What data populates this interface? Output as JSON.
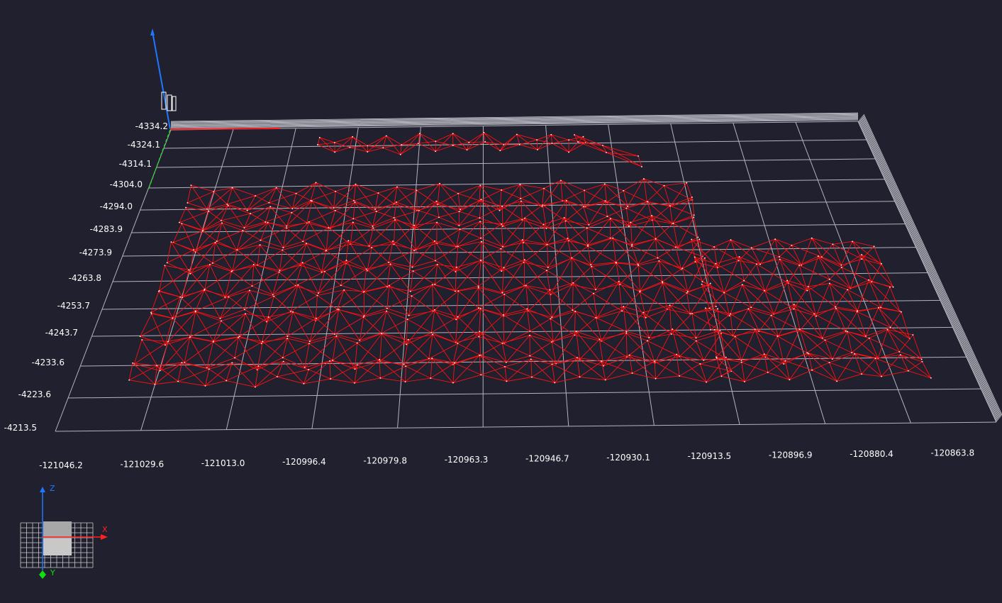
{
  "viewport": {
    "background": "#20202e",
    "grid_color": "#b4b4c0",
    "wall_color": "#c8c8d2",
    "mesh_color": "#ff1010",
    "vertex_color": "#ffffff"
  },
  "y_axis_ticks": [
    "-4334.2",
    "-4324.1",
    "-4314.1",
    "-4304.0",
    "-4294.0",
    "-4283.9",
    "-4273.9",
    "-4263.8",
    "-4253.7",
    "-4243.7",
    "-4233.6",
    "-4223.6",
    "-4213.5"
  ],
  "x_axis_ticks": [
    "-121046.2",
    "-121029.6",
    "-121013.0",
    "-120996.4",
    "-120979.8",
    "-120963.3",
    "-120946.7",
    "-120930.1",
    "-120913.5",
    "-120896.9",
    "-120880.4",
    "-120863.8"
  ],
  "axes": {
    "z_color": "#1e78ff",
    "x_color": "#ff2020",
    "y_color": "#10e010"
  },
  "gizmo": {
    "z_label": "Z",
    "x_label": "X",
    "y_label": "Y"
  }
}
